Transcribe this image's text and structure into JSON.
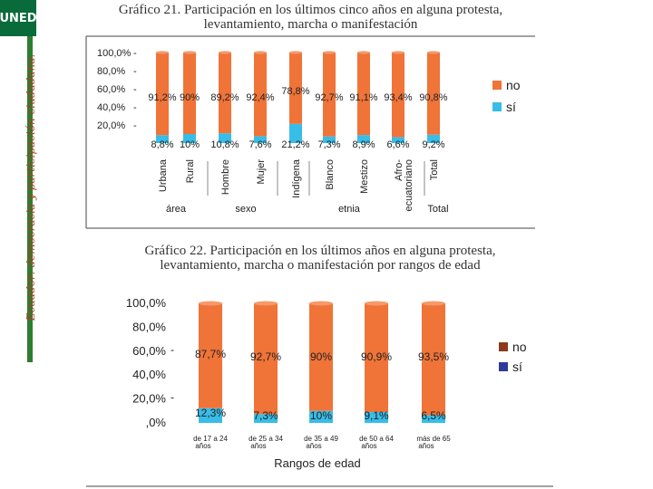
{
  "sidebar": {
    "logo_text": "UNED",
    "caption": "Ecuador: democracia y participación ciudadana."
  },
  "chart21": {
    "title_line1": "Gráfico 21. Participación en los últimos cinco años en alguna protesta,",
    "title_line2": "levantamiento, marcha o manifestación"
  },
  "chart22": {
    "title_line1": "Gráfico 22. Participación en los últimos años en alguna protesta,",
    "title_line2": "levantamiento, marcha o manifestación por rangos de edad"
  },
  "chart_data": [
    {
      "type": "bar",
      "stacked": true,
      "title": "Gráfico 21. Participación en los últimos cinco años en alguna protesta, levantamiento, marcha o manifestación",
      "categories": [
        "Urbana",
        "Rural",
        "Hombre",
        "Mujer",
        "Indígena",
        "Blanco",
        "Mestizo",
        "Afro-ecuatoriano",
        "Total"
      ],
      "groups": [
        {
          "label": "área",
          "categories": [
            "Urbana",
            "Rural"
          ]
        },
        {
          "label": "sexo",
          "categories": [
            "Hombre",
            "Mujer"
          ]
        },
        {
          "label": "etnia",
          "categories": [
            "Indígena",
            "Blanco",
            "Mestizo",
            "Afro-ecuatoriano"
          ]
        },
        {
          "label": "",
          "categories": [
            "Total"
          ]
        }
      ],
      "series": [
        {
          "name": "sí",
          "color": "#38bde8",
          "values": [
            8.8,
            10,
            10.8,
            7.6,
            21.2,
            7.3,
            8.9,
            6.6,
            9.2
          ],
          "labels": [
            "8,8%",
            "10%",
            "10,8%",
            "7,6%",
            "21,2%",
            "7,3%",
            "8,9%",
            "6,6%",
            "9,2%"
          ]
        },
        {
          "name": "no",
          "color": "#f07338",
          "values": [
            91.2,
            90,
            89.2,
            92.4,
            78.8,
            92.7,
            91.1,
            93.4,
            90.8
          ],
          "labels": [
            "91,2%",
            "90%",
            "89,2%",
            "92,4%",
            "78,8%",
            "92,7%",
            "91,1%",
            "93,4%",
            "90,8%"
          ]
        }
      ],
      "y_ticks": [
        "100,0%",
        "80,0%",
        "60,0%",
        "40,0%",
        "20,0%"
      ],
      "ylim": [
        0,
        100
      ],
      "legend": "right",
      "legend_entries": [
        "no",
        "sí"
      ]
    },
    {
      "type": "bar",
      "stacked": true,
      "title": "Gráfico 22. Participación en los últimos años en alguna protesta, levantamiento, marcha o manifestación por rangos de edad",
      "categories": [
        "de 17 a 24 años",
        "de 25 a 34 años",
        "de 35 a 49 años",
        "de 50 a 64 años",
        "más de 65 años"
      ],
      "xlabel": "Rangos de edad",
      "series": [
        {
          "name": "sí",
          "color": "#38bde8",
          "values": [
            12.3,
            7.3,
            10,
            9.1,
            6.5
          ],
          "labels": [
            "12,3%",
            "7,3%",
            "10%",
            "9,1%",
            "6,5%"
          ]
        },
        {
          "name": "no",
          "color": "#f07338",
          "values": [
            87.7,
            92.7,
            90,
            90.9,
            93.5
          ],
          "labels": [
            "87,7%",
            "92,7%",
            "90%",
            "90,9%",
            "93,5%"
          ]
        }
      ],
      "y_ticks": [
        "100,0%",
        "80,0%",
        "60,0%",
        "40,0%",
        "20,0%",
        ",0%"
      ],
      "ylim": [
        0,
        100
      ],
      "legend": "right",
      "legend_entries": [
        {
          "name": "no",
          "color": "#8b3a1e"
        },
        {
          "name": "sí",
          "color": "#2e3a9a"
        }
      ]
    }
  ]
}
